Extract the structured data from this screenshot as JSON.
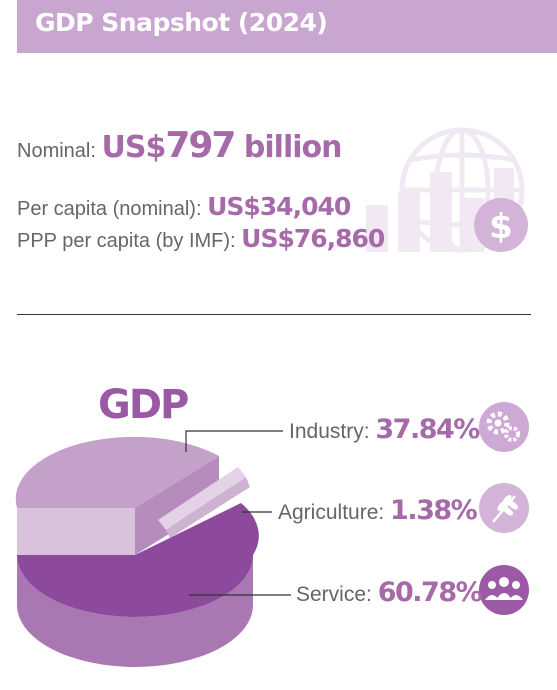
{
  "header": {
    "title": "GDP Snapshot (2024)"
  },
  "stats": {
    "nominal": {
      "label": "Nominal: ",
      "prefix": "US$",
      "number": "797",
      "suffix": " billion"
    },
    "per_capita": {
      "label": "Per capita (nominal): ",
      "value": "US$34,040"
    },
    "ppp": {
      "label": "PPP per capita (by IMF): ",
      "value": "US$76,860"
    }
  },
  "chart_data": {
    "type": "pie",
    "title": "GDP",
    "series": [
      {
        "name": "Industry",
        "value": 37.84,
        "display": "37.84%",
        "icon": "gears-icon",
        "color": "#c4a0c9"
      },
      {
        "name": "Agriculture",
        "value": 1.38,
        "display": "1.38%",
        "icon": "wheat-icon",
        "color": "#d9c2dd"
      },
      {
        "name": "Service",
        "value": 60.78,
        "display": "60.78%",
        "icon": "people-group-icon",
        "color": "#8a4a98"
      }
    ]
  },
  "labels": {
    "industry": "Industry: ",
    "agriculture": "Agriculture: ",
    "service": "Service: "
  },
  "icons": {
    "decor": "globe-bar-chart-icon",
    "dollar": "dollar-icon"
  },
  "colors": {
    "accent": "#a66aa9",
    "header_bg": "#c9a6d0",
    "dark": "#8a4a98"
  }
}
